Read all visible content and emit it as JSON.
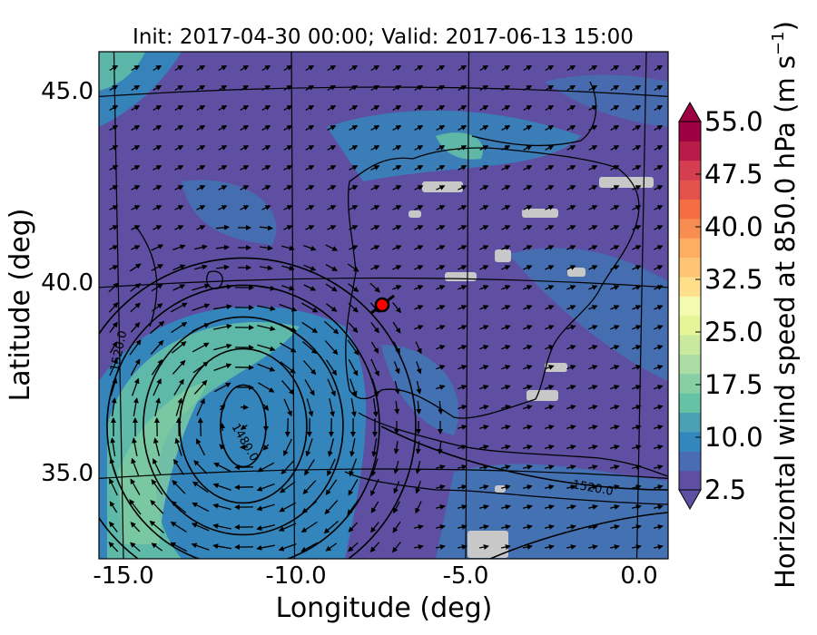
{
  "chart_data": {
    "type": "heatmap",
    "title": "Init: 2017-04-30 00:00; Valid: 2017-06-13 15:00",
    "xlabel": "Longitude (deg)",
    "ylabel": "Latitude (deg)",
    "xlim": [
      -16.0,
      0.3
    ],
    "ylim": [
      32.8,
      46.0
    ],
    "xticks": [
      "-15.0",
      "-10.0",
      "-5.0",
      "0.0"
    ],
    "yticks": [
      "35.0",
      "40.0",
      "45.0"
    ],
    "colorbar": {
      "label": "Horizontal wind speed at 850.0 hPa (m s",
      "label_unit_exponent": "−1",
      "label_close": ")",
      "range": [
        2.5,
        55.0
      ],
      "ticks": [
        "2.5",
        "10.0",
        "17.5",
        "25.0",
        "32.5",
        "40.0",
        "47.5",
        "55.0"
      ],
      "extend": "both",
      "colormap": "Spectral_r"
    },
    "contour_labels": [
      "1520.0",
      "1480.0",
      "1520.0"
    ],
    "marker": {
      "lon": -7.7,
      "lat": 39.4,
      "color": "#ff0000"
    },
    "cyclone_center": {
      "lon": -11.5,
      "lat": 36.2
    },
    "missing_data_color": "#c8c8c8",
    "colors": {
      "calm": "#5e4fa2",
      "moderate": "#3288bd",
      "strong": "#66c2a5"
    }
  }
}
